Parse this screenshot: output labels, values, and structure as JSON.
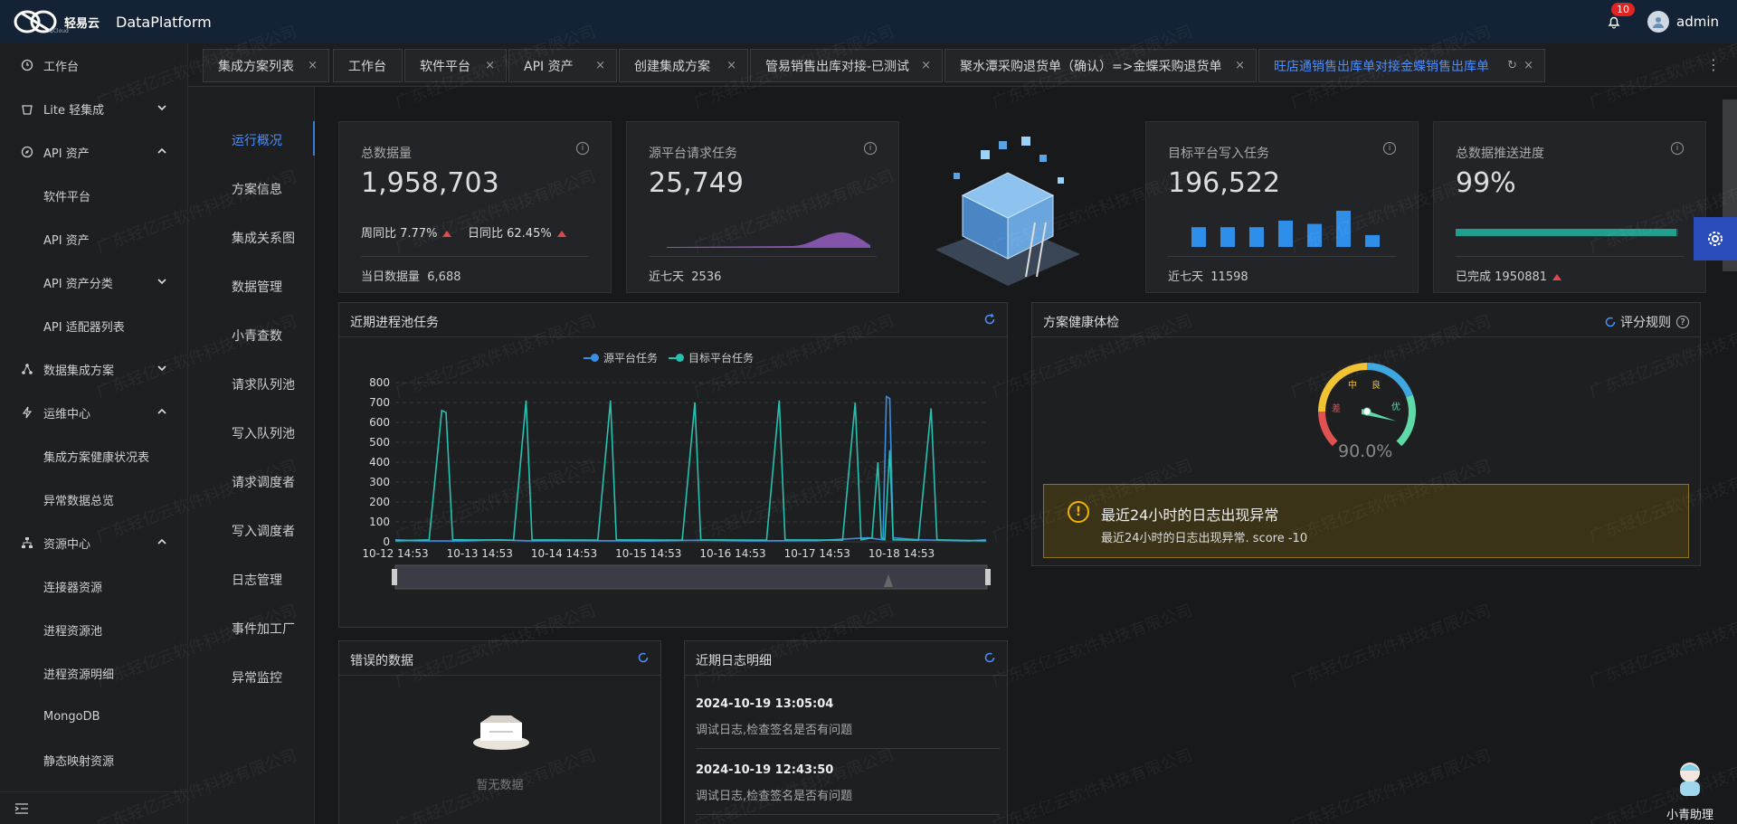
{
  "brand": {
    "logo_text": "轻易云",
    "logo_sub": "QCloud",
    "app_name": "DataPlatform"
  },
  "header": {
    "notification_count": "10",
    "username": "admin"
  },
  "sidebar": {
    "items": [
      {
        "label": "工作台",
        "icon": "monitor-icon",
        "expand": ""
      },
      {
        "label": "Lite 轻集成",
        "icon": "bucket-icon",
        "expand": "down"
      },
      {
        "label": "API 资产",
        "icon": "compass-icon",
        "expand": "up"
      },
      {
        "label": "软件平台",
        "sub": true
      },
      {
        "label": "API 资产",
        "sub": true
      },
      {
        "label": "API 资产分类",
        "sub": true,
        "expand": "down"
      },
      {
        "label": "API 适配器列表",
        "sub": true
      },
      {
        "label": "数据集成方案",
        "icon": "share-icon",
        "expand": "down"
      },
      {
        "label": "运维中心",
        "icon": "bolt-icon",
        "expand": "up"
      },
      {
        "label": "集成方案健康状况表",
        "sub": true
      },
      {
        "label": "异常数据总览",
        "sub": true
      },
      {
        "label": "资源中心",
        "icon": "network-icon",
        "expand": "up"
      },
      {
        "label": "连接器资源",
        "sub": true
      },
      {
        "label": "进程资源池",
        "sub": true
      },
      {
        "label": "进程资源明细",
        "sub": true
      },
      {
        "label": "MongoDB",
        "sub": true
      },
      {
        "label": "静态映射资源",
        "sub": true
      }
    ]
  },
  "tabs": [
    "集成方案列表",
    "工作台",
    "软件平台",
    "API 资产",
    "创建集成方案",
    "管易销售出库对接-已测试",
    "聚水潭采购退货单（确认）=>金蝶采购退货单",
    "旺店通销售出库单对接金蝶销售出库单"
  ],
  "subnav": [
    "运行概况",
    "方案信息",
    "集成关系图",
    "数据管理",
    "小青查数",
    "请求队列池",
    "写入队列池",
    "请求调度者",
    "写入调度者",
    "日志管理",
    "事件加工厂",
    "异常监控"
  ],
  "stats": {
    "total": {
      "label": "总数据量",
      "value": "1,958,703",
      "week": "周同比 7.77%",
      "day": "日同比 62.45%",
      "today_label": "当日数据量",
      "today": "6,688"
    },
    "source": {
      "label": "源平台请求任务",
      "value": "25,749",
      "foot_label": "近七天",
      "foot": "2536"
    },
    "target": {
      "label": "目标平台写入任务",
      "value": "196,522",
      "foot_label": "近七天",
      "foot": "11598"
    },
    "progress": {
      "label": "总数据推送进度",
      "value": "99%",
      "fraction": 0.99,
      "done_label": "已完成",
      "done": "1950881"
    }
  },
  "target_bars": {
    "values": [
      3,
      3,
      3,
      4,
      3.5,
      5.5,
      1.8
    ],
    "color": "#2f8fe8"
  },
  "chart_panel": {
    "title": "近期进程池任务"
  },
  "chart_data": {
    "type": "line",
    "x": [
      "10-12 14:53",
      "10-13 14:53",
      "10-14 14:53",
      "10-15 14:53",
      "10-16 14:53",
      "10-17 14:53",
      "10-18 14:53"
    ],
    "ylim": [
      0,
      800
    ],
    "yticks": [
      0,
      100,
      200,
      300,
      400,
      500,
      600,
      700,
      800
    ],
    "series": [
      {
        "name": "源平台任务",
        "color": "#3a8ee6",
        "values": [
          [
            0,
            10
          ],
          [
            0.3,
            5
          ],
          [
            0.8,
            4
          ],
          [
            1.2,
            10
          ],
          [
            1.6,
            5
          ],
          [
            2.3,
            6
          ],
          [
            3.0,
            4
          ],
          [
            3.6,
            8
          ],
          [
            4.2,
            5
          ],
          [
            5.0,
            6
          ],
          [
            5.6,
            20
          ],
          [
            5.78,
            10
          ],
          [
            5.82,
            730
          ],
          [
            5.86,
            720
          ],
          [
            5.9,
            20
          ],
          [
            6.2,
            10
          ],
          [
            6.8,
            5
          ],
          [
            7.0,
            10
          ]
        ]
      },
      {
        "name": "目标平台任务",
        "color": "#25c2b2",
        "values": [
          [
            0,
            5
          ],
          [
            0.4,
            10
          ],
          [
            0.55,
            660
          ],
          [
            0.6,
            650
          ],
          [
            0.68,
            10
          ],
          [
            1.4,
            8
          ],
          [
            1.55,
            710
          ],
          [
            1.62,
            10
          ],
          [
            2.4,
            8
          ],
          [
            2.55,
            710
          ],
          [
            2.62,
            10
          ],
          [
            3.4,
            8
          ],
          [
            3.55,
            700
          ],
          [
            3.62,
            10
          ],
          [
            4.4,
            8
          ],
          [
            4.55,
            710
          ],
          [
            4.62,
            10
          ],
          [
            5.3,
            8
          ],
          [
            5.45,
            700
          ],
          [
            5.52,
            10
          ],
          [
            5.65,
            20
          ],
          [
            5.72,
            400
          ],
          [
            5.76,
            20
          ],
          [
            5.8,
            10
          ],
          [
            5.86,
            460
          ],
          [
            5.9,
            10
          ],
          [
            6.2,
            8
          ],
          [
            6.35,
            670
          ],
          [
            6.42,
            10
          ],
          [
            7.0,
            5
          ]
        ]
      }
    ]
  },
  "health": {
    "title": "方案健康体检",
    "rule_label": "评分规则",
    "value": "90.0%",
    "score": 0.9,
    "labels": [
      "差",
      "中",
      "良",
      "优"
    ],
    "alert_title": "最近24小时的日志出现异常",
    "alert_detail": "最近24小时的日志出现异常. score -10"
  },
  "errors": {
    "title": "错误的数据",
    "empty": "暂无数据"
  },
  "logs": {
    "title": "近期日志明细",
    "items": [
      {
        "time": "2024-10-19 13:05:04",
        "text": "调试日志,检查签名是否有问题"
      },
      {
        "time": "2024-10-19 12:43:50",
        "text": "调试日志,检查签名是否有问题"
      }
    ]
  },
  "watermark": "广东轻亿云软件科技有限公司",
  "assistant": "小青助理"
}
